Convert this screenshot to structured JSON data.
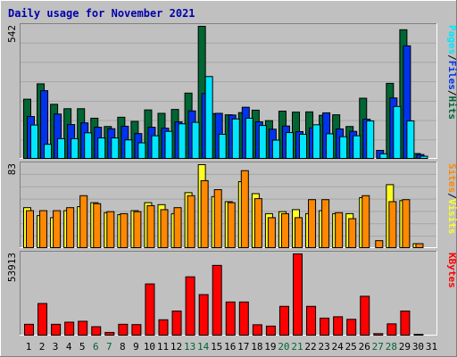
{
  "title": "Daily usage for November 2021",
  "colors": {
    "frame": "#c0c0c0",
    "panel": "#c0c0c0",
    "title": "#0000aa",
    "hits": "#006633",
    "files": "#0033ee",
    "pages": "#00e6ff",
    "visits": "#ffff22",
    "sites": "#ff8800",
    "kbytes": "#ff0000",
    "weekday_label": "#000000",
    "weekend_label": "#006633"
  },
  "chart_data": [
    {
      "type": "bar",
      "panel": "hits",
      "max_label": "542",
      "ylim": [
        0,
        542
      ],
      "legend": [
        {
          "text": "Pages",
          "color_key": "pages"
        },
        {
          "text": "/",
          "color_key": "weekday_label"
        },
        {
          "text": "Files",
          "color_key": "files"
        },
        {
          "text": "/",
          "color_key": "weekday_label"
        },
        {
          "text": "Hits",
          "color_key": "hits"
        }
      ],
      "categories": [
        "1",
        "2",
        "3",
        "4",
        "5",
        "6",
        "7",
        "8",
        "9",
        "10",
        "11",
        "12",
        "13",
        "14",
        "15",
        "16",
        "17",
        "18",
        "19",
        "20",
        "21",
        "22",
        "23",
        "24",
        "25",
        "26",
        "27",
        "28",
        "29",
        "30",
        "31"
      ],
      "series": [
        {
          "name": "Hits",
          "color_key": "hits",
          "values": [
            243,
            306,
            222,
            204,
            204,
            165,
            131,
            169,
            152,
            199,
            185,
            201,
            268,
            542,
            184,
            179,
            188,
            198,
            155,
            194,
            190,
            191,
            177,
            179,
            131,
            247,
            0,
            308,
            528,
            20,
            0
          ]
        },
        {
          "name": "Files",
          "color_key": "files",
          "values": [
            172,
            278,
            182,
            139,
            146,
            128,
            122,
            132,
            102,
            128,
            124,
            150,
            195,
            266,
            185,
            178,
            210,
            150,
            120,
            133,
            110,
            125,
            187,
            121,
            111,
            161,
            33,
            248,
            462,
            16,
            0
          ]
        },
        {
          "name": "Pages",
          "color_key": "pages",
          "values": [
            137,
            58,
            81,
            81,
            105,
            84,
            84,
            76,
            64,
            93,
            111,
            142,
            148,
            336,
            99,
            162,
            165,
            135,
            75,
            106,
            99,
            138,
            101,
            89,
            93,
            154,
            19,
            213,
            154,
            9,
            0
          ]
        }
      ]
    },
    {
      "type": "bar",
      "panel": "visits",
      "max_label": "83",
      "ylim": [
        0,
        83
      ],
      "legend": [
        {
          "text": "Sites",
          "color_key": "sites"
        },
        {
          "text": "/",
          "color_key": "weekday_label"
        },
        {
          "text": "Visits",
          "color_key": "visits"
        }
      ],
      "categories": [
        "1",
        "2",
        "3",
        "4",
        "5",
        "6",
        "7",
        "8",
        "9",
        "10",
        "11",
        "12",
        "13",
        "14",
        "15",
        "16",
        "17",
        "18",
        "19",
        "20",
        "21",
        "22",
        "23",
        "24",
        "25",
        "26",
        "27",
        "28",
        "29",
        "30",
        "31"
      ],
      "series": [
        {
          "name": "Visits",
          "color_key": "visits",
          "values": [
            40,
            32,
            30,
            37,
            41,
            45,
            35,
            33,
            37,
            45,
            43,
            34,
            55,
            83,
            51,
            46,
            66,
            54,
            34,
            36,
            38,
            34,
            37,
            34,
            34,
            50,
            0,
            63,
            47,
            4,
            0
          ]
        },
        {
          "name": "Sites",
          "color_key": "sites",
          "values": [
            37,
            37,
            37,
            40,
            52,
            44,
            36,
            34,
            36,
            42,
            38,
            40,
            52,
            67,
            58,
            45,
            77,
            49,
            30,
            34,
            30,
            48,
            48,
            35,
            29,
            52,
            7,
            46,
            48,
            4,
            0
          ]
        }
      ]
    },
    {
      "type": "bar",
      "panel": "kbytes",
      "max_label": "53913",
      "ylim": [
        0,
        53913
      ],
      "legend": [
        {
          "text": "KBytes",
          "color_key": "kbytes"
        }
      ],
      "categories": [
        "1",
        "2",
        "3",
        "4",
        "5",
        "6",
        "7",
        "8",
        "9",
        "10",
        "11",
        "12",
        "13",
        "14",
        "15",
        "16",
        "17",
        "18",
        "19",
        "20",
        "21",
        "22",
        "23",
        "24",
        "25",
        "26",
        "27",
        "28",
        "29",
        "30",
        "31"
      ],
      "series": [
        {
          "name": "KBytes",
          "color_key": "kbytes",
          "values": [
            7200,
            21000,
            7200,
            8600,
            9200,
            5600,
            1800,
            7200,
            7000,
            34000,
            10200,
            16000,
            38700,
            26900,
            46300,
            22000,
            22000,
            6900,
            6000,
            19100,
            53913,
            19100,
            11300,
            12200,
            10500,
            25800,
            1000,
            7500,
            16000,
            500,
            0
          ]
        }
      ]
    }
  ],
  "x_labels": [
    "1",
    "2",
    "3",
    "4",
    "5",
    "6",
    "7",
    "8",
    "9",
    "10",
    "11",
    "12",
    "13",
    "14",
    "15",
    "16",
    "17",
    "18",
    "19",
    "20",
    "21",
    "22",
    "23",
    "24",
    "25",
    "26",
    "27",
    "28",
    "29",
    "30",
    "31"
  ],
  "weekend_days": [
    "6",
    "7",
    "13",
    "14",
    "20",
    "21",
    "27",
    "28"
  ]
}
